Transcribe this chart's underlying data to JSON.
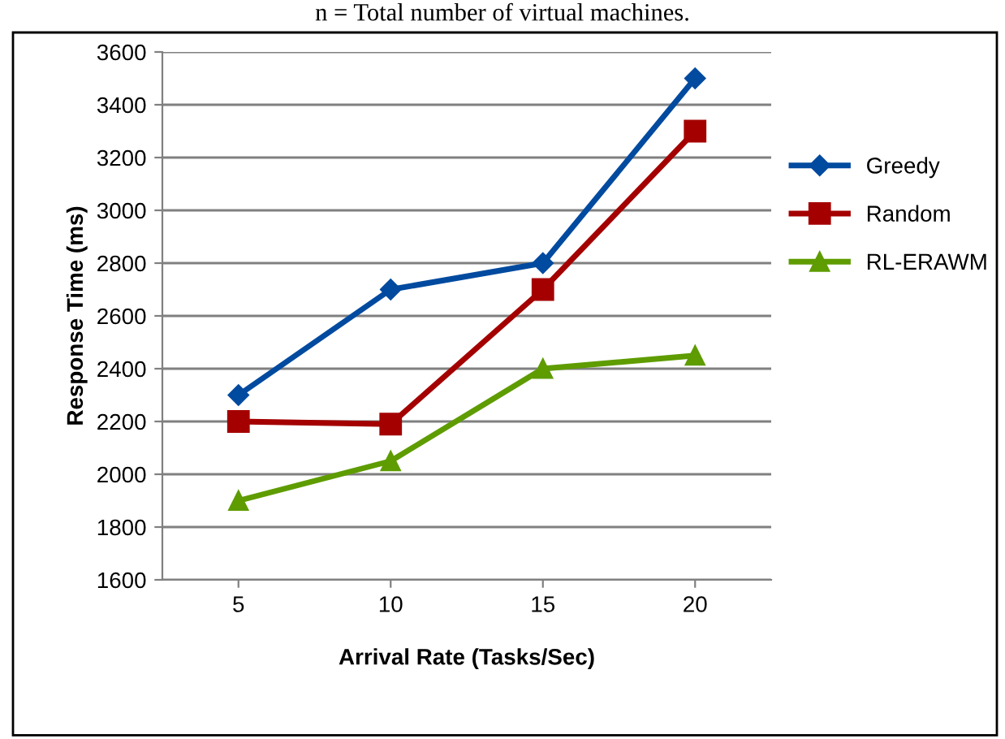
{
  "chart_data": {
    "type": "line",
    "xlabel": "Arrival Rate (Tasks/Sec)",
    "ylabel": "Response Time (ms)",
    "annotations": [
      "n = Total number of virtual machines."
    ],
    "categories": [
      "5",
      "10",
      "15",
      "20"
    ],
    "series": [
      {
        "name": "Greedy",
        "color": "#004a9f",
        "marker": "diamond",
        "values": [
          2300,
          2700,
          2800,
          3500
        ]
      },
      {
        "name": "Random",
        "color": "#a40000",
        "marker": "square",
        "values": [
          2200,
          2190,
          2700,
          3300
        ]
      },
      {
        "name": "RL-ERAWM",
        "color": "#5e9c00",
        "marker": "triangle",
        "values": [
          1900,
          2050,
          2400,
          2450
        ]
      }
    ],
    "ylim": [
      1600,
      3600
    ],
    "yticks": [
      1600,
      1800,
      2000,
      2200,
      2400,
      2600,
      2800,
      3000,
      3200,
      3400,
      3600
    ],
    "grid": "y",
    "legend": "right",
    "line_style": "solid"
  }
}
